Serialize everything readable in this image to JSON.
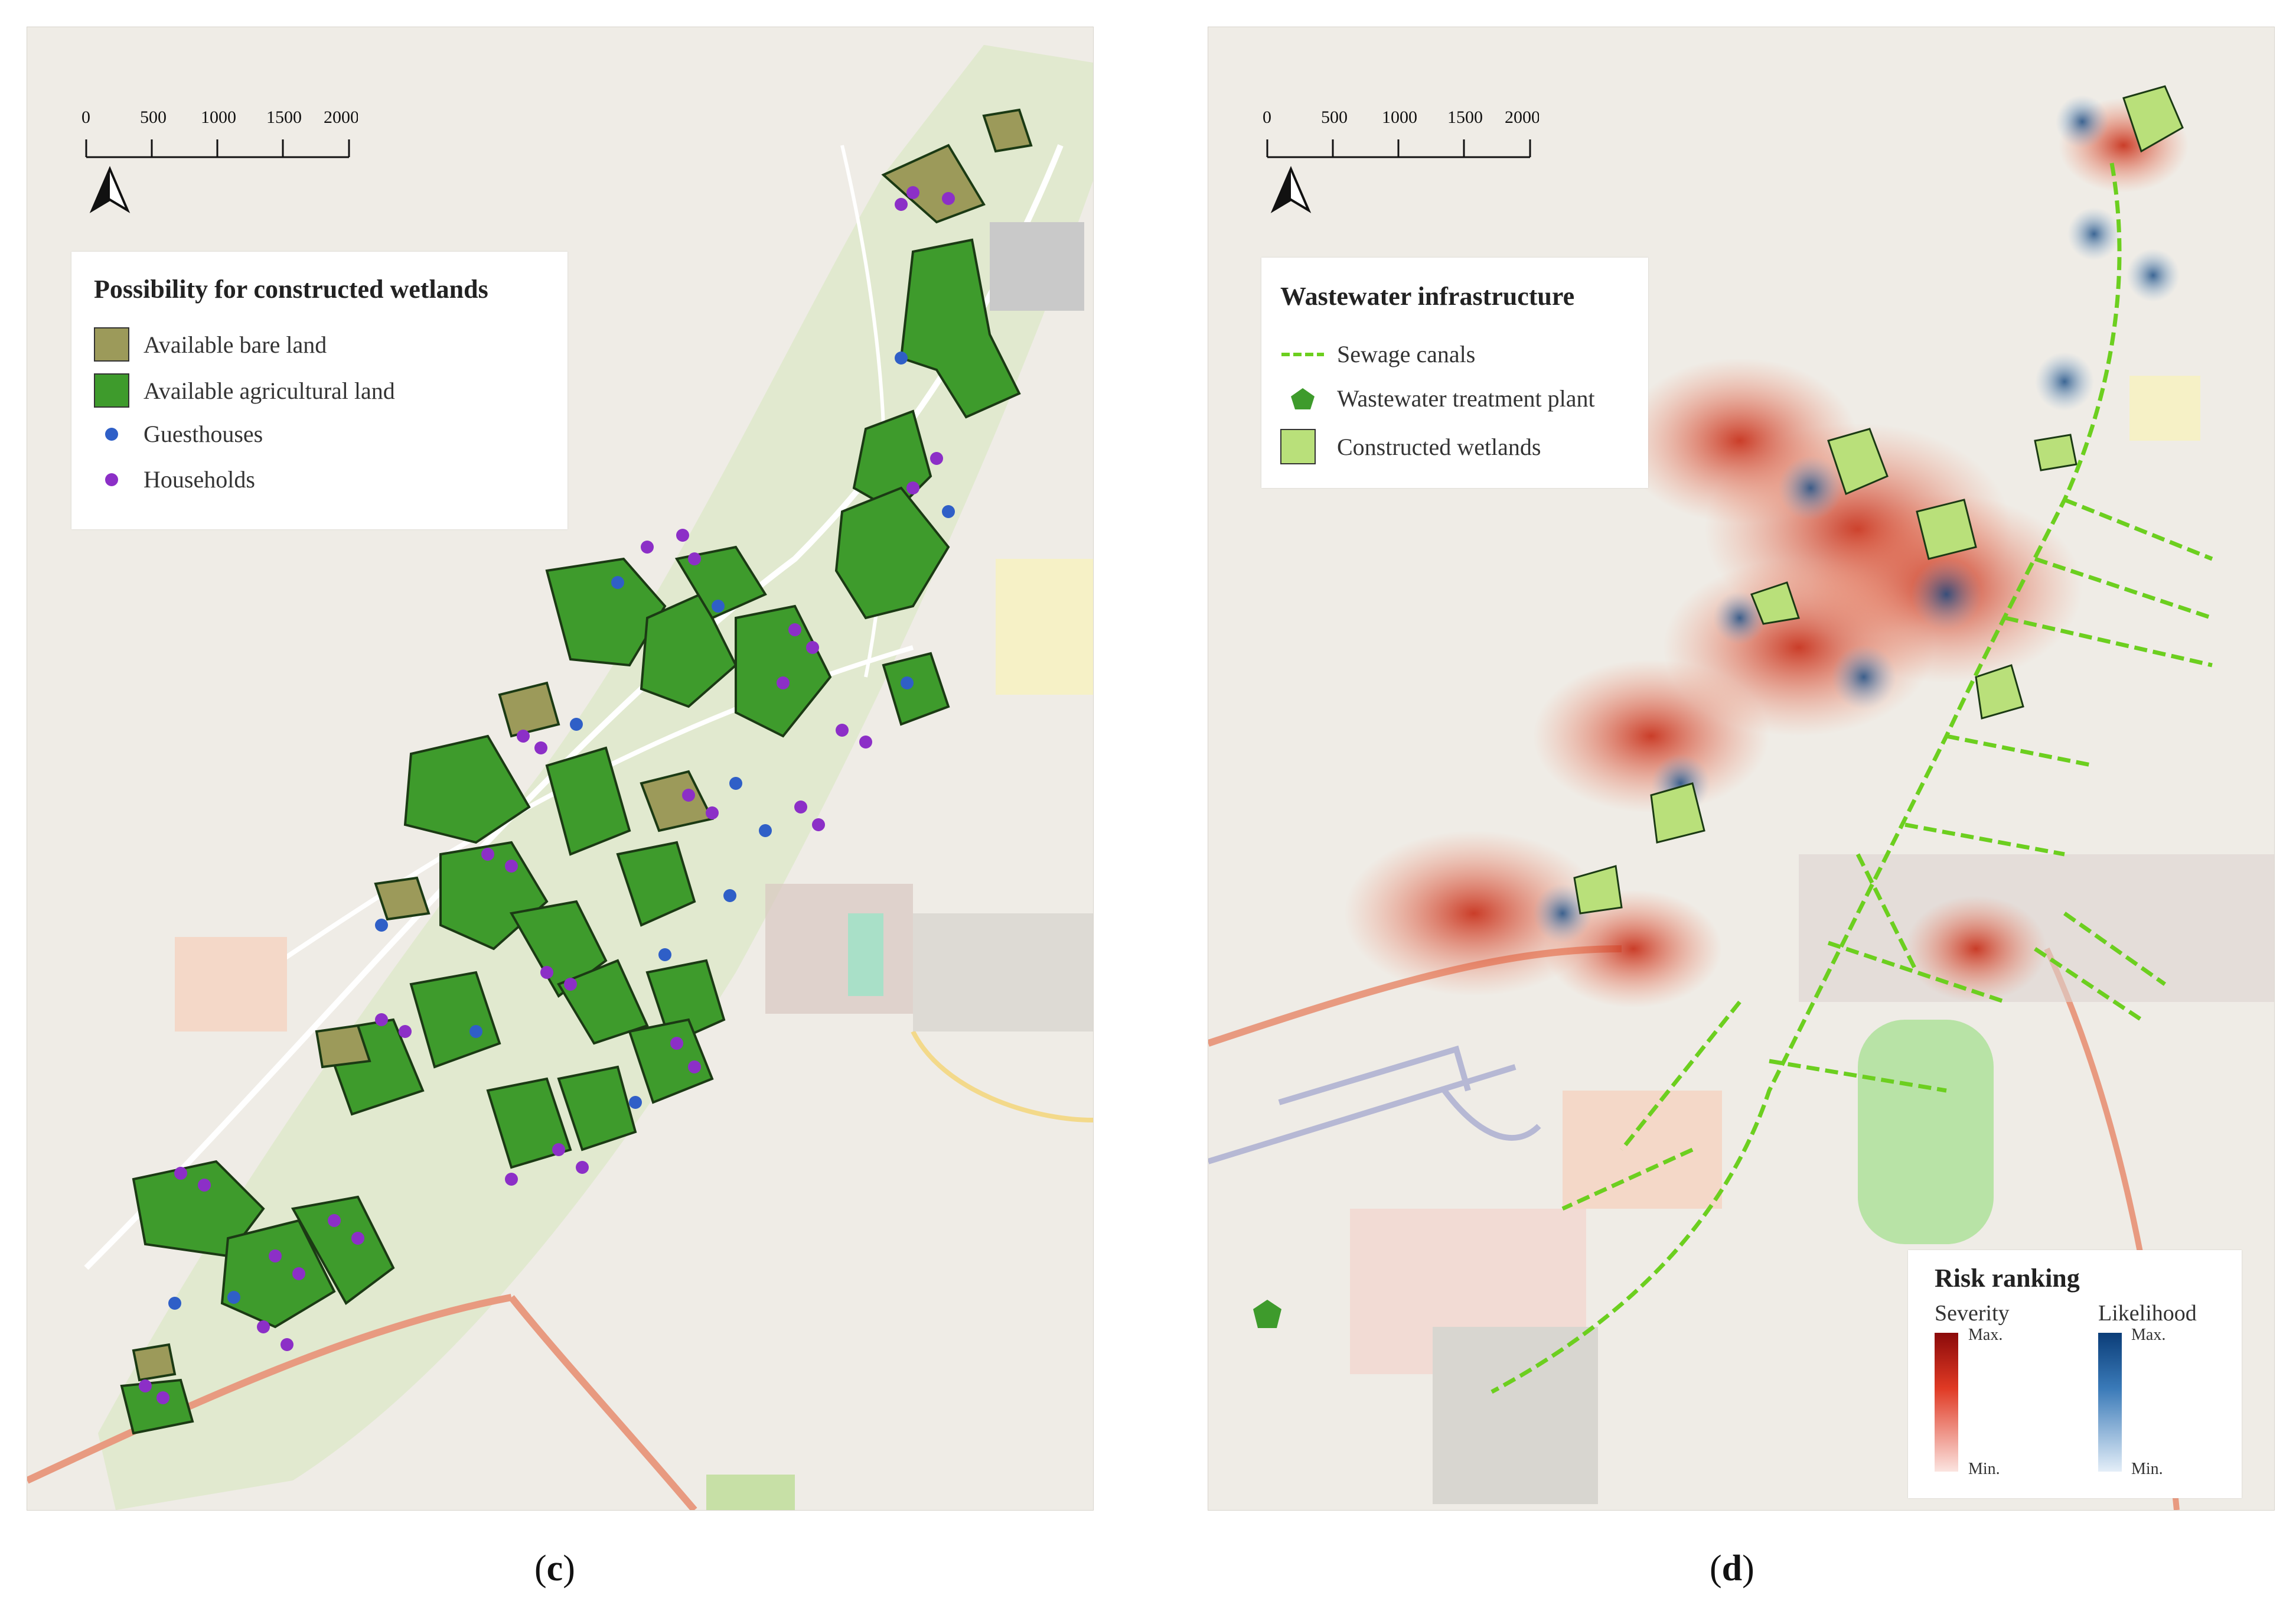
{
  "panel_c": {
    "label_open": "(",
    "label_letter": "c",
    "label_close": ")",
    "scale_ticks": [
      "0",
      "500",
      "1000",
      "1500",
      "2000 m"
    ],
    "legend": {
      "title": "Possibility for constructed wetlands",
      "items": [
        {
          "label": "Available bare land",
          "symbol": "square",
          "color": "#9c9a5a"
        },
        {
          "label": "Available agricultural land",
          "symbol": "square",
          "color": "#3e9b2c"
        },
        {
          "label": "Guesthouses",
          "symbol": "dot",
          "color": "#2f5fc7"
        },
        {
          "label": "Households",
          "symbol": "dot",
          "color": "#8c2fc7"
        }
      ]
    }
  },
  "panel_d": {
    "label_open": "(",
    "label_letter": "d",
    "label_close": ")",
    "scale_ticks": [
      "0",
      "500",
      "1000",
      "1500",
      "2000 m"
    ],
    "legend": {
      "title": "Wastewater infrastructure",
      "items": [
        {
          "label": "Sewage canals",
          "symbol": "dashed-line",
          "color": "#6ccf1f"
        },
        {
          "label": "Wastewater treatment plant",
          "symbol": "pentagon",
          "color": "#3e9b2c"
        },
        {
          "label": "Constructed wetlands",
          "symbol": "square",
          "color": "#b9e07a"
        }
      ]
    },
    "risk": {
      "title": "Risk ranking",
      "severity": {
        "label": "Severity",
        "max": "Max.",
        "min": "Min.",
        "color": "#8b0a0a"
      },
      "likelihood": {
        "label": "Likelihood",
        "max": "Max.",
        "min": "Min.",
        "color": "#0b3d78"
      }
    }
  },
  "colors": {
    "bare_land": "#9c9a5a",
    "agri_land": "#3e9b2c",
    "guesthouse": "#2f5fc7",
    "household": "#8c2fc7",
    "sewage": "#6ccf1f",
    "wetland": "#b9e07a",
    "severity": "#c62a14",
    "likelihood": "#2f6ea8"
  }
}
